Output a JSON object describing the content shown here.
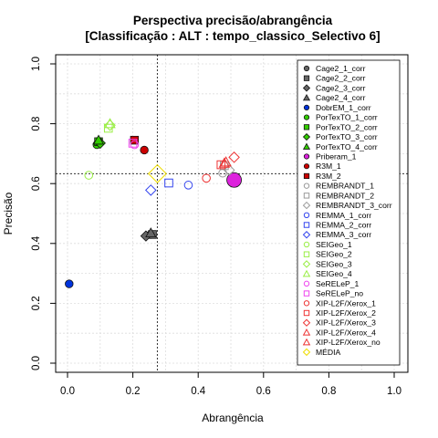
{
  "chart_data": {
    "type": "scatter",
    "title": "Perspectiva precisão/abrangência",
    "subtitle": "[Classificação : ALT : tempo_classico_Selectivo 6]",
    "xlabel": "Abrangência",
    "ylabel": "Precisão",
    "xlim": [
      0,
      1
    ],
    "ylim": [
      0,
      1
    ],
    "xticks": [
      "0.0",
      "0.2",
      "0.4",
      "0.6",
      "0.8",
      "1.0"
    ],
    "yticks": [
      "0.0",
      "0.2",
      "0.4",
      "0.6",
      "0.8",
      "1.0"
    ],
    "grid": true,
    "legend_position": "top-right",
    "reference_lines": {
      "x": 0.275,
      "y": 0.633
    },
    "series": [
      {
        "name": "Cage2_1_corr",
        "shape": "circle",
        "filled": true,
        "color": "#666666",
        "x": 0.255,
        "y": 0.43
      },
      {
        "name": "Cage2_2_corr",
        "shape": "square",
        "filled": true,
        "color": "#666666",
        "x": 0.26,
        "y": 0.43
      },
      {
        "name": "Cage2_3_corr",
        "shape": "diamond",
        "filled": true,
        "color": "#666666",
        "x": 0.24,
        "y": 0.425
      },
      {
        "name": "Cage2_4_corr",
        "shape": "triangle",
        "filled": true,
        "color": "#666666",
        "x": 0.255,
        "y": 0.435
      },
      {
        "name": "DobrEM_1_corr",
        "shape": "circle",
        "filled": true,
        "color": "#0033dd",
        "x": 0.005,
        "y": 0.265
      },
      {
        "name": "PorTexTO_1_corr",
        "shape": "circle",
        "filled": true,
        "color": "#33cc00",
        "x": 0.09,
        "y": 0.73
      },
      {
        "name": "PorTexTO_2_corr",
        "shape": "square",
        "filled": true,
        "color": "#33cc00",
        "x": 0.095,
        "y": 0.74
      },
      {
        "name": "PorTexTO_3_corr",
        "shape": "diamond",
        "filled": true,
        "color": "#33cc00",
        "x": 0.1,
        "y": 0.735
      },
      {
        "name": "PorTexTO_4_corr",
        "shape": "triangle",
        "filled": true,
        "color": "#33cc00",
        "x": 0.095,
        "y": 0.745
      },
      {
        "name": "Priberam_1",
        "shape": "circle",
        "filled": true,
        "color": "#dd22dd",
        "x": 0.51,
        "y": 0.612
      },
      {
        "name": "R3M_1",
        "shape": "circle",
        "filled": true,
        "color": "#cc0000",
        "x": 0.235,
        "y": 0.712
      },
      {
        "name": "R3M_2",
        "shape": "square",
        "filled": true,
        "color": "#cc0000",
        "x": 0.205,
        "y": 0.745
      },
      {
        "name": "REMBRANDT_1",
        "shape": "circle",
        "filled": false,
        "color": "#999999",
        "x": 0.475,
        "y": 0.635
      },
      {
        "name": "REMBRANDT_2",
        "shape": "square",
        "filled": false,
        "color": "#999999",
        "x": 0.48,
        "y": 0.66
      },
      {
        "name": "REMBRANDT_3_corr",
        "shape": "diamond",
        "filled": false,
        "color": "#999999",
        "x": 0.495,
        "y": 0.645
      },
      {
        "name": "REMMA_1_corr",
        "shape": "circle",
        "filled": false,
        "color": "#3344ee",
        "x": 0.37,
        "y": 0.595
      },
      {
        "name": "REMMA_2_corr",
        "shape": "square",
        "filled": false,
        "color": "#3344ee",
        "x": 0.31,
        "y": 0.602
      },
      {
        "name": "REMMA_3_corr",
        "shape": "diamond",
        "filled": false,
        "color": "#3344ee",
        "x": 0.255,
        "y": 0.578
      },
      {
        "name": "SEIGeo_1",
        "shape": "circle",
        "filled": false,
        "color": "#99ee44",
        "x": 0.065,
        "y": 0.628
      },
      {
        "name": "SEIGeo_2",
        "shape": "square",
        "filled": false,
        "color": "#99ee44",
        "x": 0.125,
        "y": 0.785
      },
      {
        "name": "SEIGeo_3",
        "shape": "diamond",
        "filled": false,
        "color": "#99ee44",
        "x": 0.13,
        "y": 0.795
      },
      {
        "name": "SEIGeo_4",
        "shape": "triangle",
        "filled": false,
        "color": "#99ee44",
        "x": 0.13,
        "y": 0.8
      },
      {
        "name": "SeRELeP_1",
        "shape": "circle",
        "filled": false,
        "color": "#ee44ee",
        "x": 0.205,
        "y": 0.73
      },
      {
        "name": "SeRELeP_no",
        "shape": "square",
        "filled": false,
        "color": "#ee44ee",
        "x": 0.2,
        "y": 0.735
      },
      {
        "name": "XIP-L2F/Xerox_1",
        "shape": "circle",
        "filled": false,
        "color": "#ee3333",
        "x": 0.425,
        "y": 0.618
      },
      {
        "name": "XIP-L2F/Xerox_2",
        "shape": "square",
        "filled": false,
        "color": "#ee3333",
        "x": 0.47,
        "y": 0.663
      },
      {
        "name": "XIP-L2F/Xerox_3",
        "shape": "diamond",
        "filled": false,
        "color": "#ee3333",
        "x": 0.51,
        "y": 0.688
      },
      {
        "name": "XIP-L2F/Xerox_4",
        "shape": "triangle",
        "filled": false,
        "color": "#ee3333",
        "x": 0.48,
        "y": 0.668
      },
      {
        "name": "XIP-L2F/Xerox_no",
        "shape": "triangle",
        "filled": false,
        "color": "#ee3333",
        "x": 0.485,
        "y": 0.672
      },
      {
        "name": "MÉDIA",
        "shape": "diamond",
        "filled": false,
        "color": "#eedd00",
        "x": 0.275,
        "y": 0.633
      }
    ]
  }
}
